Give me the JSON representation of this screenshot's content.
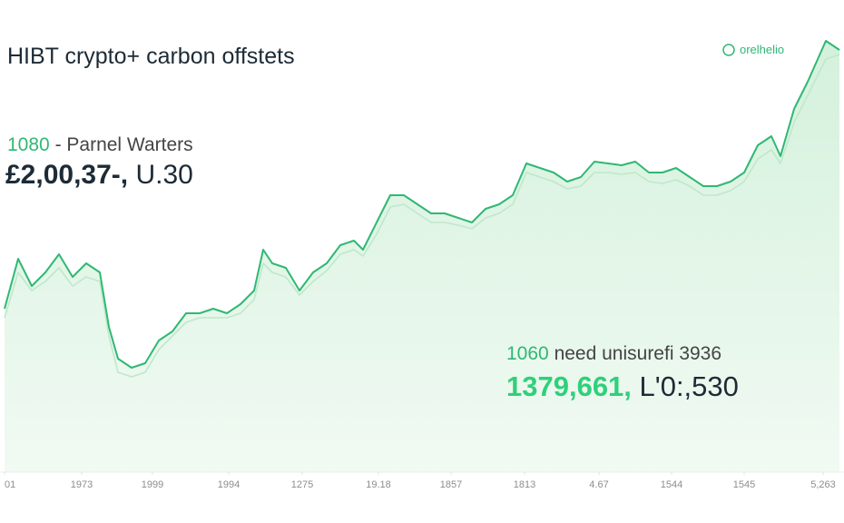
{
  "chart_data": {
    "type": "area",
    "title": "HIBT crypto+ carbon offstets",
    "legend_label": "orelhelio",
    "annotations": [
      "1080",
      "- Parnel Warters",
      "£2,00,37-,",
      "U.30",
      "1060",
      "need unisurefi 3936",
      "1379,661,",
      "L'0:,530"
    ],
    "x": [
      0,
      15,
      30,
      45,
      60,
      75,
      90,
      105,
      115,
      125,
      140,
      155,
      170,
      185,
      200,
      215,
      230,
      245,
      260,
      275,
      285,
      295,
      310,
      325,
      340,
      355,
      370,
      385,
      395,
      410,
      425,
      440,
      455,
      470,
      485,
      500,
      515,
      530,
      545,
      560,
      575,
      590,
      605,
      620,
      635,
      650,
      665,
      680,
      695,
      710,
      725,
      740,
      755,
      770,
      785,
      800,
      815,
      830,
      845,
      855,
      870,
      885,
      905,
      920
    ],
    "series": [
      {
        "color": "#2fb873",
        "values": [
          180,
          235,
          205,
          220,
          240,
          215,
          230,
          220,
          160,
          125,
          115,
          120,
          145,
          155,
          175,
          175,
          180,
          175,
          185,
          200,
          245,
          230,
          225,
          200,
          220,
          230,
          250,
          255,
          245,
          275,
          305,
          305,
          295,
          285,
          285,
          280,
          275,
          290,
          295,
          305,
          340,
          335,
          330,
          320,
          325,
          342,
          340,
          338,
          342,
          330,
          330,
          335,
          325,
          315,
          315,
          320,
          330,
          360,
          370,
          348,
          400,
          430,
          475,
          465
        ]
      },
      {
        "color": "#bfe8cb",
        "values": [
          170,
          220,
          200,
          210,
          225,
          205,
          215,
          210,
          150,
          110,
          105,
          110,
          135,
          150,
          165,
          170,
          170,
          170,
          175,
          190,
          230,
          220,
          215,
          195,
          210,
          222,
          240,
          245,
          238,
          262,
          292,
          295,
          285,
          275,
          275,
          272,
          268,
          280,
          285,
          295,
          330,
          325,
          320,
          312,
          315,
          330,
          330,
          328,
          330,
          320,
          318,
          322,
          315,
          305,
          305,
          310,
          320,
          345,
          355,
          340,
          385,
          415,
          455,
          460
        ]
      }
    ],
    "xlim": [
      0,
      920
    ],
    "xticks": [
      {
        "value": 0,
        "label": "01"
      },
      {
        "value": 85,
        "label": "1973"
      },
      {
        "value": 163,
        "label": "1999"
      },
      {
        "value": 247,
        "label": "1994"
      },
      {
        "value": 328,
        "label": "1275"
      },
      {
        "value": 412,
        "label": "19.18"
      },
      {
        "value": 492,
        "label": "1857"
      },
      {
        "value": 573,
        "label": "1813"
      },
      {
        "value": 655,
        "label": "4.67"
      },
      {
        "value": 735,
        "label": "1544"
      },
      {
        "value": 815,
        "label": "1545"
      },
      {
        "value": 902,
        "label": "5,263"
      }
    ],
    "ylim": [
      0,
      480
    ],
    "area_fill": "#e3f6e8"
  }
}
